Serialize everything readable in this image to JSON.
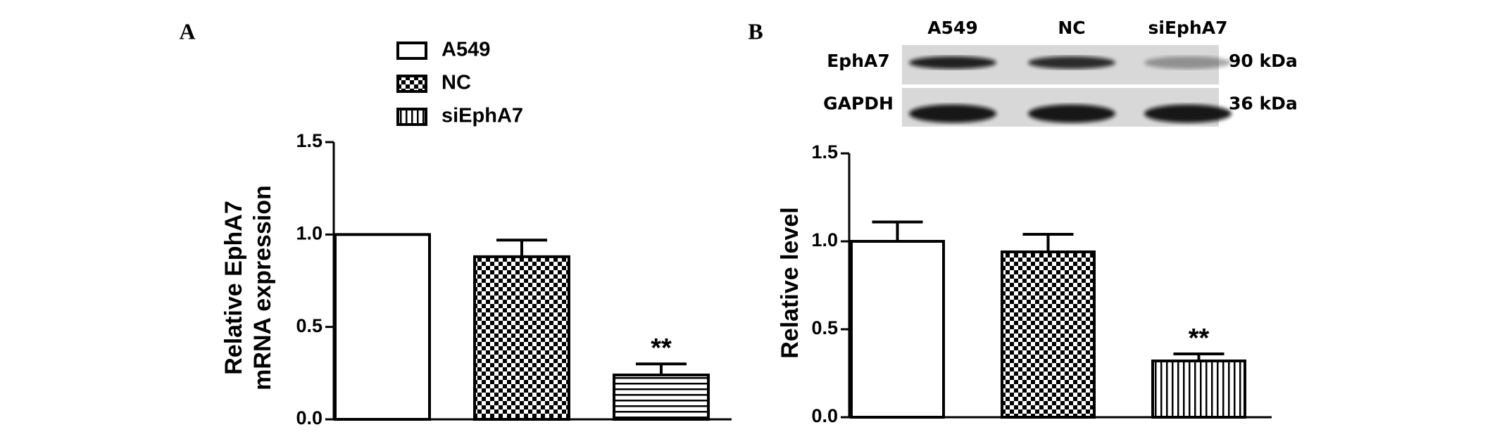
{
  "chart_data": [
    {
      "type": "bar",
      "panel": "A",
      "ylabel": [
        "Relative EphA7",
        "mRNA expression"
      ],
      "categories": [
        "A549",
        "NC",
        "siEphA7"
      ],
      "values": [
        1.0,
        0.88,
        0.24
      ],
      "errors": [
        null,
        0.09,
        0.06
      ],
      "significance": [
        null,
        null,
        "**"
      ],
      "patterns": [
        "none",
        "checker",
        "horizontal"
      ],
      "color": "#000000",
      "ylim": [
        0,
        1.5
      ],
      "yticks": [
        {
          "value": 0,
          "label": "0.0"
        },
        0.5,
        {
          "value": 1,
          "label": "1.0"
        },
        1.5
      ],
      "legend": true,
      "legend_position": "top"
    },
    {
      "type": "bar",
      "panel": "B",
      "ylabel": [
        "Relative level"
      ],
      "categories": [
        "A549",
        "NC",
        "siEphA7"
      ],
      "values": [
        1.0,
        0.94,
        0.32
      ],
      "errors": [
        0.11,
        0.1,
        0.04
      ],
      "significance": [
        null,
        null,
        "**"
      ],
      "patterns": [
        "none",
        "checker",
        "vertical"
      ],
      "color": "#000000",
      "ylim": [
        0,
        1.5
      ],
      "yticks": [
        {
          "value": 0,
          "label": "0.0"
        },
        0.5,
        {
          "value": 1,
          "label": "1.0"
        },
        1.5
      ],
      "legend": false,
      "blot": {
        "rows": [
          {
            "label": "EphA7",
            "size": "90 kDa"
          },
          {
            "label": "GAPDH",
            "size": "36 kDa"
          }
        ]
      }
    }
  ]
}
